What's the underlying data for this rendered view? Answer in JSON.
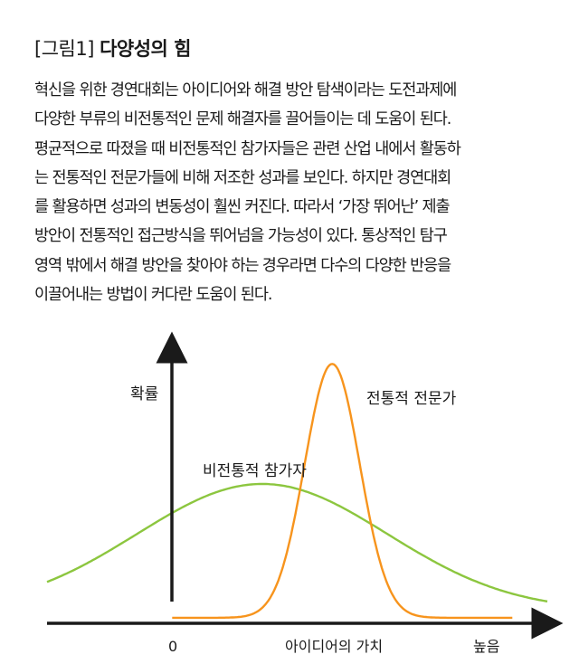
{
  "figure": {
    "label": "[그림1]",
    "title": "다양성의 힘"
  },
  "body_lines": [
    "혁신을 위한 경연대회는 아이디어와 해결 방안 탐색이라는 도전과제에",
    "다양한 부류의 비전통적인 문제 해결자를 끌어들이는 데 도움이 된다.",
    "평균적으로 따졌을 때 비전통적인 참가자들은 관련 산업 내에서 활동하",
    "는 전통적인 전문가들에 비해 저조한 성과를 보인다. 하지만 경연대회",
    "를 활용하면 성과의 변동성이 훨씬 커진다. 따라서 ‘가장 뛰어난’ 제출",
    "방안이 전통적인 접근방식을 뛰어넘을 가능성이 있다. 통상적인 탐구",
    "영역 밖에서 해결 방안을 찾아야 하는 경우라면 다수의 다양한 반응을",
    "이끌어내는 방법이 커다란 도움이 된다."
  ],
  "chart_data": {
    "type": "line",
    "title": "",
    "ylabel": "확률",
    "xlabel": "아이디어의 가치",
    "x_ticks": {
      "zero": "0",
      "high": "높음"
    },
    "series": [
      {
        "name": "비전통적 참가자",
        "color": "#8cc63f",
        "mean": 0.43,
        "sd": 0.25,
        "peak": 0.46
      },
      {
        "name": "전통적 전문가",
        "color": "#f7941d",
        "mean": 0.57,
        "sd": 0.055,
        "peak": 0.92
      }
    ],
    "grid": false,
    "legend": "labels-on-curves"
  }
}
